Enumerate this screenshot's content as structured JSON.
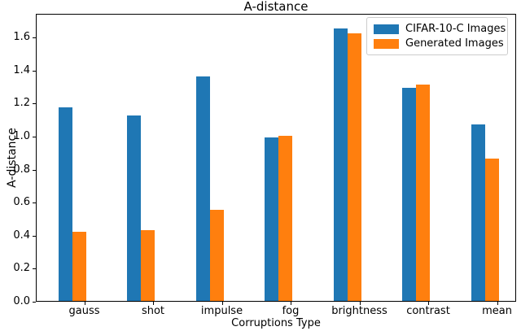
{
  "chart_data": {
    "type": "bar",
    "title": "A-distance",
    "xlabel": "Corruptions Type",
    "ylabel": "A-distance",
    "categories": [
      "gauss",
      "shot",
      "impulse",
      "fog",
      "brightness",
      "contrast",
      "mean"
    ],
    "series": [
      {
        "name": "CIFAR-10-C Images",
        "color": "#1f77b4",
        "values": [
          1.17,
          1.12,
          1.36,
          0.99,
          1.65,
          1.29,
          1.07
        ]
      },
      {
        "name": "Generated Images",
        "color": "#ff7f0e",
        "values": [
          0.42,
          0.43,
          0.55,
          1.0,
          1.62,
          1.31,
          0.86
        ]
      }
    ],
    "yticks": [
      "0.0",
      "0.2",
      "0.4",
      "0.6",
      "0.8",
      "1.0",
      "1.2",
      "1.4",
      "1.6"
    ],
    "ylim": [
      0.0,
      1.74
    ],
    "grid": false,
    "legend_position": "upper right"
  }
}
